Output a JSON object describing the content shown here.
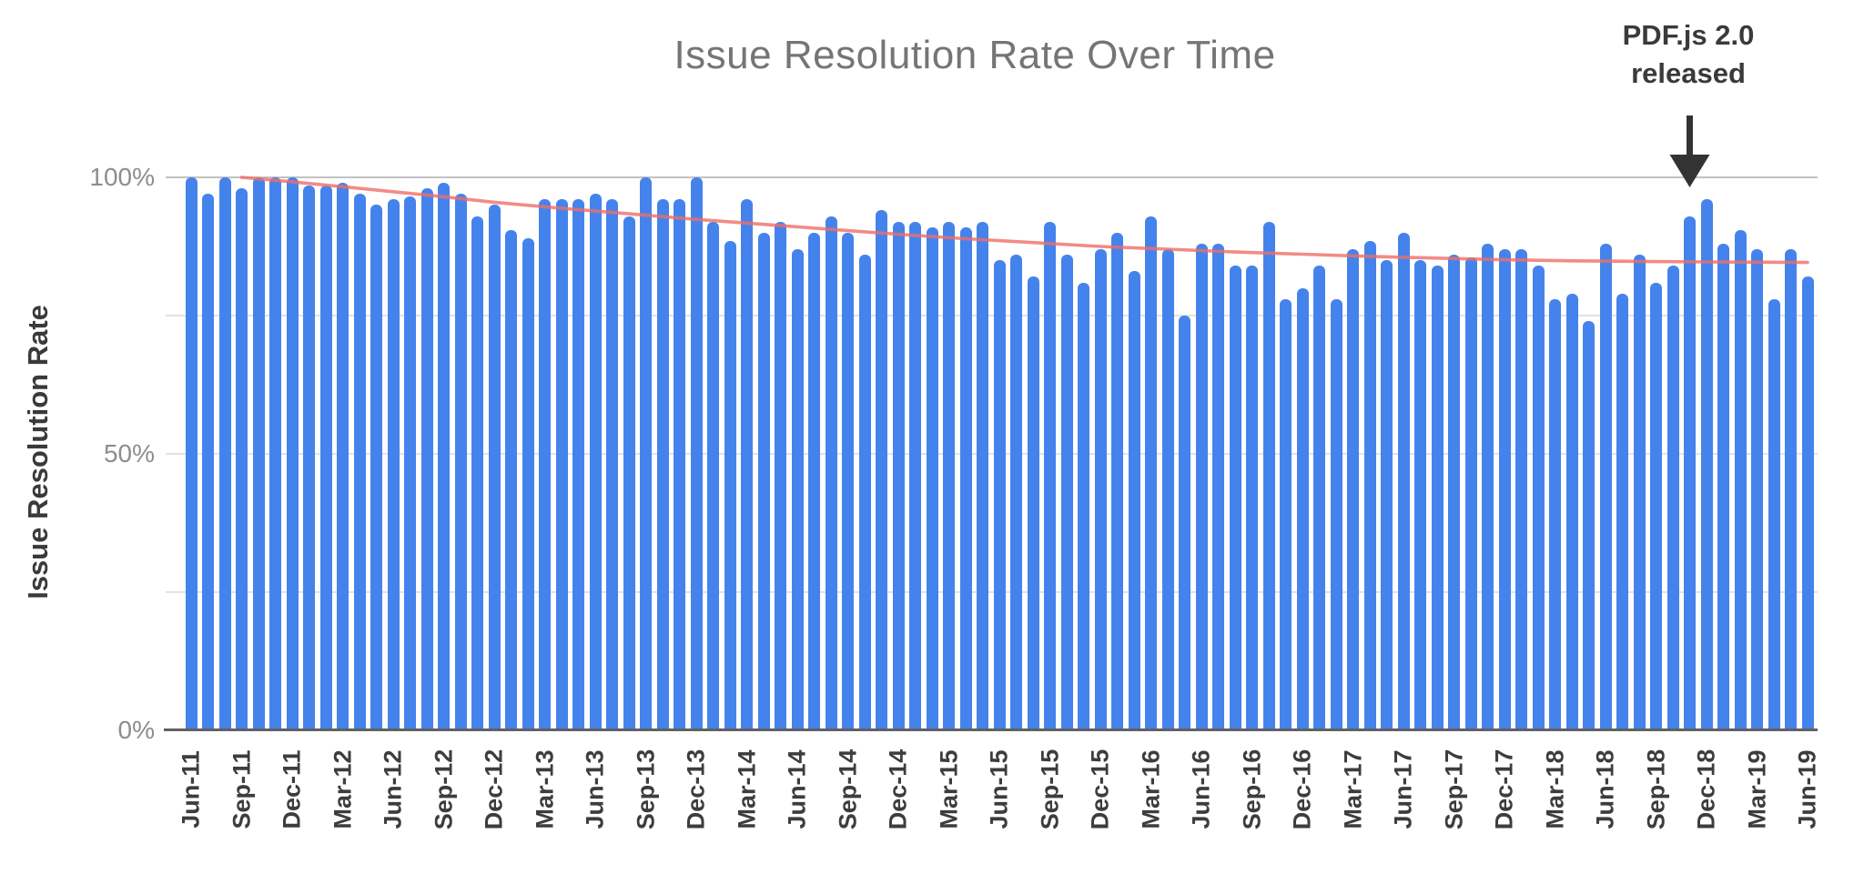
{
  "chart_data": {
    "type": "bar",
    "title": "Issue Resolution Rate Over Time",
    "xlabel": "",
    "ylabel": "Issue Resolution Rate",
    "ylim": [
      0,
      100
    ],
    "grid": true,
    "legend": "none",
    "bar_color": "#4583EC",
    "trend_color": "#ED6E68",
    "gridlines_pct": [
      25,
      50,
      75,
      100
    ],
    "y_ticks": [
      {
        "label": "100%",
        "value": 100
      },
      {
        "label": "50%",
        "value": 50
      },
      {
        "label": "0%",
        "value": 0
      }
    ],
    "x_tick_labels": [
      "Jun-11",
      "Sep-11",
      "Dec-11",
      "Mar-12",
      "Jun-12",
      "Sep-12",
      "Dec-12",
      "Mar-13",
      "Jun-13",
      "Sep-13",
      "Dec-13",
      "Mar-14",
      "Jun-14",
      "Sep-14",
      "Dec-14",
      "Mar-15",
      "Jun-15",
      "Sep-15",
      "Dec-15",
      "Mar-16",
      "Jun-16",
      "Sep-16",
      "Dec-16",
      "Mar-17",
      "Jun-17",
      "Sep-17",
      "Dec-17",
      "Mar-18",
      "Jun-18",
      "Sep-18",
      "Dec-18",
      "Mar-19",
      "Jun-19"
    ],
    "categories": [
      "Jun-11",
      "Jul-11",
      "Aug-11",
      "Sep-11",
      "Oct-11",
      "Nov-11",
      "Dec-11",
      "Jan-12",
      "Feb-12",
      "Mar-12",
      "Apr-12",
      "May-12",
      "Jun-12",
      "Jul-12",
      "Aug-12",
      "Sep-12",
      "Oct-12",
      "Nov-12",
      "Dec-12",
      "Jan-13",
      "Feb-13",
      "Mar-13",
      "Apr-13",
      "May-13",
      "Jun-13",
      "Jul-13",
      "Aug-13",
      "Sep-13",
      "Oct-13",
      "Nov-13",
      "Dec-13",
      "Jan-14",
      "Feb-14",
      "Mar-14",
      "Apr-14",
      "May-14",
      "Jun-14",
      "Jul-14",
      "Aug-14",
      "Sep-14",
      "Oct-14",
      "Nov-14",
      "Dec-14",
      "Jan-15",
      "Feb-15",
      "Mar-15",
      "Apr-15",
      "May-15",
      "Jun-15",
      "Jul-15",
      "Aug-15",
      "Sep-15",
      "Oct-15",
      "Nov-15",
      "Dec-15",
      "Jan-16",
      "Feb-16",
      "Mar-16",
      "Apr-16",
      "May-16",
      "Jun-16",
      "Jul-16",
      "Aug-16",
      "Sep-16",
      "Oct-16",
      "Nov-16",
      "Dec-16",
      "Jan-17",
      "Feb-17",
      "Mar-17",
      "Apr-17",
      "May-17",
      "Jun-17",
      "Jul-17",
      "Aug-17",
      "Sep-17",
      "Oct-17",
      "Nov-17",
      "Dec-17",
      "Jan-18",
      "Feb-18",
      "Mar-18",
      "Apr-18",
      "May-18",
      "Jun-18",
      "Jul-18",
      "Aug-18",
      "Sep-18",
      "Oct-18",
      "Nov-18",
      "Dec-18",
      "Jan-19",
      "Feb-19",
      "Mar-19",
      "Apr-19",
      "May-19",
      "Jun-19"
    ],
    "values": [
      100,
      97,
      100,
      98,
      100,
      100,
      100,
      98.5,
      98.5,
      99,
      97,
      95,
      96,
      96.5,
      98,
      99,
      97,
      93,
      95,
      90.5,
      89,
      96,
      96,
      96,
      97,
      96,
      93,
      100,
      96,
      96,
      100,
      92,
      88.5,
      96,
      90,
      92,
      87,
      90,
      93,
      90,
      86,
      94,
      92,
      92,
      91,
      92,
      91,
      92,
      85,
      86,
      82,
      92,
      86,
      81,
      87,
      90,
      83,
      93,
      87,
      75,
      88,
      88,
      84,
      84,
      92,
      78,
      80,
      84,
      78,
      87,
      88.5,
      85,
      90,
      85,
      84,
      86,
      85.5,
      88,
      87,
      87,
      84,
      78,
      79,
      74,
      88,
      79,
      86,
      81,
      84,
      93,
      96,
      88,
      90.5,
      87,
      78,
      87,
      82
    ],
    "trend": {
      "name": "resolution-rate-trend-line",
      "points": [
        [
          3,
          100
        ],
        [
          6,
          99.2
        ],
        [
          9,
          98.3
        ],
        [
          12,
          97.4
        ],
        [
          15,
          96.5
        ],
        [
          18,
          95.5
        ],
        [
          22,
          94.4
        ],
        [
          26,
          93.4
        ],
        [
          30,
          92.4
        ],
        [
          34,
          91.5
        ],
        [
          38,
          90.6
        ],
        [
          42,
          89.7
        ],
        [
          46,
          88.9
        ],
        [
          50,
          88.2
        ],
        [
          54,
          87.5
        ],
        [
          58,
          87.0
        ],
        [
          62,
          86.5
        ],
        [
          66,
          86.1
        ],
        [
          70,
          85.7
        ],
        [
          74,
          85.4
        ],
        [
          78,
          85.1
        ],
        [
          82,
          84.9
        ],
        [
          86,
          84.8
        ],
        [
          90,
          84.7
        ],
        [
          96,
          84.6
        ]
      ]
    },
    "annotation": {
      "line1": "PDF.js 2.0",
      "line2": "released",
      "points_at": "Nov-18",
      "arrow_color": "#333333"
    }
  }
}
